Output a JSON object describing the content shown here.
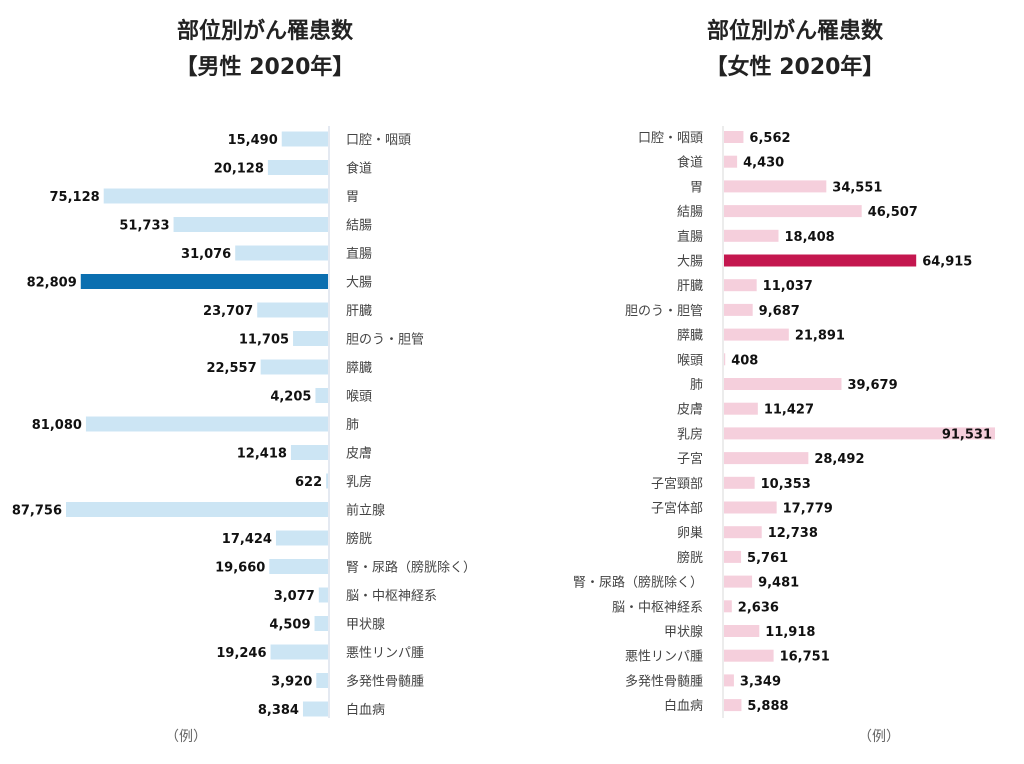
{
  "chart_data": [
    {
      "type": "bar",
      "orientation": "horizontal",
      "title": "部位別がん罹患数",
      "subtitle": "【男性 2020年】",
      "categories": [
        "口腔・咽頭",
        "食道",
        "胃",
        "結腸",
        "直腸",
        "大腸",
        "肝臓",
        "胆のう・胆管",
        "膵臓",
        "喉頭",
        "肺",
        "皮膚",
        "乳房",
        "前立腺",
        "膀胱",
        "腎・尿路（膀胱除く）",
        "脳・中枢神経系",
        "甲状腺",
        "悪性リンパ腫",
        "多発性骨髄腫",
        "白血病"
      ],
      "values": [
        15490,
        20128,
        75128,
        51733,
        31076,
        82809,
        23707,
        11705,
        22557,
        4205,
        81080,
        12418,
        622,
        87756,
        17424,
        19660,
        3077,
        4509,
        19246,
        3920,
        8384
      ],
      "value_labels": [
        "15,490",
        "20,128",
        "75,128",
        "51,733",
        "31,076",
        "82,809",
        "23,707",
        "11,705",
        "22,557",
        "4,205",
        "81,080",
        "12,418",
        "622",
        "87,756",
        "17,424",
        "19,660",
        "3,077",
        "4,509",
        "19,246",
        "3,920",
        "8,384"
      ],
      "highlight": "大腸",
      "bar_color": "#cce5f4",
      "highlight_color": "#0b6fb0",
      "bar_direction": "leftward",
      "note": "（例）"
    },
    {
      "type": "bar",
      "orientation": "horizontal",
      "title": "部位別がん罹患数",
      "subtitle": "【女性 2020年】",
      "categories": [
        "口腔・咽頭",
        "食道",
        "胃",
        "結腸",
        "直腸",
        "大腸",
        "肝臓",
        "胆のう・胆管",
        "膵臓",
        "喉頭",
        "肺",
        "皮膚",
        "乳房",
        "子宮",
        "子宮頸部",
        "子宮体部",
        "卵巣",
        "膀胱",
        "腎・尿路（膀胱除く）",
        "脳・中枢神経系",
        "甲状腺",
        "悪性リンパ腫",
        "多発性骨髄腫",
        "白血病"
      ],
      "values": [
        6562,
        4430,
        34551,
        46507,
        18408,
        64915,
        11037,
        9687,
        21891,
        408,
        39679,
        11427,
        91531,
        28492,
        10353,
        17779,
        12738,
        5761,
        9481,
        2636,
        11918,
        16751,
        3349,
        5888
      ],
      "value_labels": [
        "6,562",
        "4,430",
        "34,551",
        "46,507",
        "18,408",
        "64,915",
        "11,037",
        "9,687",
        "21,891",
        "408",
        "39,679",
        "11,427",
        "91,531",
        "28,492",
        "10,353",
        "17,779",
        "12,738",
        "5,761",
        "9,481",
        "2,636",
        "11,918",
        "16,751",
        "3,349",
        "5,888"
      ],
      "highlight": "大腸",
      "bar_color": "#f5cfdc",
      "highlight_color": "#c4174f",
      "bar_direction": "rightward",
      "note": "（例）"
    }
  ]
}
